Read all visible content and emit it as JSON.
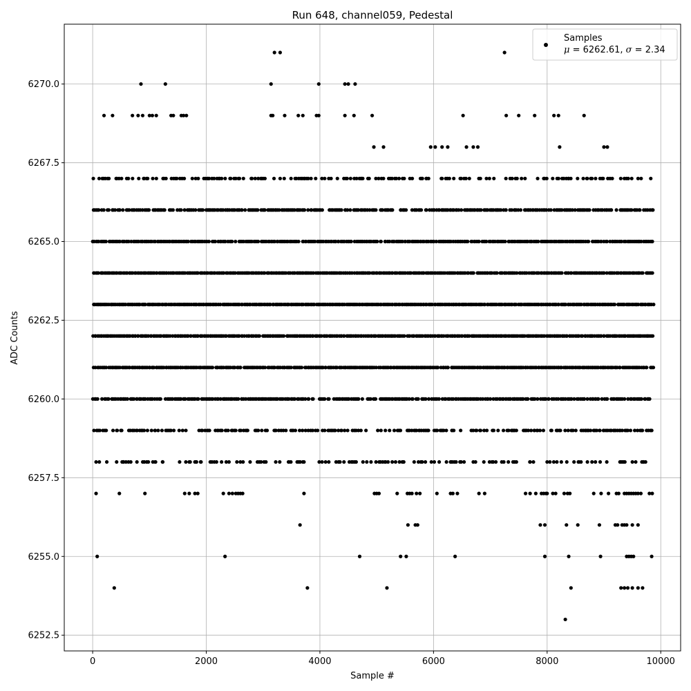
{
  "chart_data": {
    "type": "scatter",
    "title": "Run 648, channel059, Pedestal",
    "xlabel": "Sample #",
    "ylabel": "ADC Counts",
    "xlim": [
      -500,
      10350
    ],
    "ylim": [
      6252.0,
      6271.9
    ],
    "xticks": [
      0,
      2000,
      4000,
      6000,
      8000,
      10000
    ],
    "xtick_labels": [
      "0",
      "2000",
      "4000",
      "6000",
      "8000",
      "10000"
    ],
    "yticks": [
      6252.5,
      6255.0,
      6257.5,
      6260.0,
      6262.5,
      6265.0,
      6267.5,
      6270.0
    ],
    "ytick_labels": [
      "6252.5",
      "6255.0",
      "6257.5",
      "6260.0",
      "6262.5",
      "6265.0",
      "6267.5",
      "6270.0"
    ],
    "grid": true,
    "legend": {
      "placement": "top-right",
      "series_label": "Samples",
      "stats_mu_label": "μ",
      "stats_mu_value": "6262.61",
      "stats_sigma_label": "σ",
      "stats_sigma_value": "2.34"
    },
    "series": [
      {
        "name": "Samples",
        "color": "#000000",
        "x_range": [
          0,
          9850
        ],
        "n_samples": 9851,
        "mean": 6262.61,
        "std": 2.34,
        "dense_levels": [
          {
            "y": 6259,
            "x_range": [
              0,
              9850
            ],
            "density": 0.55
          },
          {
            "y": 6260,
            "x_range": [
              0,
              9850
            ],
            "density": 0.8
          },
          {
            "y": 6261,
            "x_range": [
              0,
              9850
            ],
            "density": 0.97
          },
          {
            "y": 6262,
            "x_range": [
              0,
              9850
            ],
            "density": 0.98
          },
          {
            "y": 6263,
            "x_range": [
              0,
              9850
            ],
            "density": 0.99
          },
          {
            "y": 6264,
            "x_range": [
              0,
              9850
            ],
            "density": 0.98
          },
          {
            "y": 6265,
            "x_range": [
              0,
              9850
            ],
            "density": 0.9
          },
          {
            "y": 6266,
            "x_range": [
              0,
              9850
            ],
            "density": 0.75
          },
          {
            "y": 6267,
            "x_range": [
              0,
              9850
            ],
            "density": 0.45
          },
          {
            "y": 6258,
            "x_range": [
              0,
              9850
            ],
            "density": 0.28
          }
        ],
        "sparse_points": [
          [
            3200,
            6271
          ],
          [
            3300,
            6271
          ],
          [
            7250,
            6271
          ],
          [
            850,
            6270
          ],
          [
            1280,
            6270
          ],
          [
            3140,
            6270
          ],
          [
            3980,
            6270
          ],
          [
            4440,
            6270
          ],
          [
            4500,
            6270
          ],
          [
            4620,
            6270
          ],
          [
            200,
            6269
          ],
          [
            350,
            6269
          ],
          [
            700,
            6269
          ],
          [
            800,
            6269
          ],
          [
            880,
            6269
          ],
          [
            1000,
            6269
          ],
          [
            1050,
            6269
          ],
          [
            1120,
            6269
          ],
          [
            1380,
            6269
          ],
          [
            1420,
            6269
          ],
          [
            1560,
            6269
          ],
          [
            1600,
            6269
          ],
          [
            1650,
            6269
          ],
          [
            3140,
            6269
          ],
          [
            3170,
            6269
          ],
          [
            3380,
            6269
          ],
          [
            3620,
            6269
          ],
          [
            3700,
            6269
          ],
          [
            3940,
            6269
          ],
          [
            3980,
            6269
          ],
          [
            4440,
            6269
          ],
          [
            4600,
            6269
          ],
          [
            4920,
            6269
          ],
          [
            6520,
            6269
          ],
          [
            7280,
            6269
          ],
          [
            7500,
            6269
          ],
          [
            7780,
            6269
          ],
          [
            8120,
            6269
          ],
          [
            8200,
            6269
          ],
          [
            8650,
            6269
          ],
          [
            4950,
            6268
          ],
          [
            5120,
            6268
          ],
          [
            5950,
            6268
          ],
          [
            6030,
            6268
          ],
          [
            6150,
            6268
          ],
          [
            6250,
            6268
          ],
          [
            6580,
            6268
          ],
          [
            6700,
            6268
          ],
          [
            6780,
            6268
          ],
          [
            8220,
            6268
          ],
          [
            9000,
            6268
          ],
          [
            9060,
            6268
          ],
          [
            60,
            6258
          ],
          [
            540,
            6258
          ],
          [
            630,
            6258
          ],
          [
            980,
            6258
          ],
          [
            1060,
            6258
          ],
          [
            1230,
            6258
          ],
          [
            1640,
            6258
          ],
          [
            1700,
            6258
          ],
          [
            1800,
            6258
          ],
          [
            1900,
            6258
          ],
          [
            2100,
            6258
          ],
          [
            2180,
            6258
          ],
          [
            2400,
            6258
          ],
          [
            2600,
            6258
          ],
          [
            2900,
            6258
          ],
          [
            3050,
            6258
          ],
          [
            3600,
            6258
          ],
          [
            3720,
            6258
          ],
          [
            4100,
            6258
          ],
          [
            4340,
            6258
          ],
          [
            4580,
            6258
          ],
          [
            4900,
            6258
          ],
          [
            5200,
            6258
          ],
          [
            5450,
            6258
          ],
          [
            5800,
            6258
          ],
          [
            6100,
            6258
          ],
          [
            6300,
            6258
          ],
          [
            6700,
            6258
          ],
          [
            7050,
            6258
          ],
          [
            7400,
            6258
          ],
          [
            7700,
            6258
          ],
          [
            8000,
            6258
          ],
          [
            8250,
            6258
          ],
          [
            8550,
            6258
          ],
          [
            8850,
            6258
          ],
          [
            9050,
            6258
          ],
          [
            9300,
            6258
          ],
          [
            9500,
            6258
          ],
          [
            9700,
            6258
          ],
          [
            60,
            6257
          ],
          [
            470,
            6257
          ],
          [
            920,
            6257
          ],
          [
            1620,
            6257
          ],
          [
            1700,
            6257
          ],
          [
            1800,
            6257
          ],
          [
            1850,
            6257
          ],
          [
            2300,
            6257
          ],
          [
            2400,
            6257
          ],
          [
            2460,
            6257
          ],
          [
            2520,
            6257
          ],
          [
            2560,
            6257
          ],
          [
            2600,
            6257
          ],
          [
            2640,
            6257
          ],
          [
            3720,
            6257
          ],
          [
            4960,
            6257
          ],
          [
            5000,
            6257
          ],
          [
            5040,
            6257
          ],
          [
            5360,
            6257
          ],
          [
            5540,
            6257
          ],
          [
            5580,
            6257
          ],
          [
            5620,
            6257
          ],
          [
            5700,
            6257
          ],
          [
            5760,
            6257
          ],
          [
            6060,
            6257
          ],
          [
            6300,
            6257
          ],
          [
            6340,
            6257
          ],
          [
            6420,
            6257
          ],
          [
            6800,
            6257
          ],
          [
            6900,
            6257
          ],
          [
            7620,
            6257
          ],
          [
            7700,
            6257
          ],
          [
            7800,
            6257
          ],
          [
            7900,
            6257
          ],
          [
            7940,
            6257
          ],
          [
            7980,
            6257
          ],
          [
            8000,
            6257
          ],
          [
            8100,
            6257
          ],
          [
            8150,
            6257
          ],
          [
            8300,
            6257
          ],
          [
            8360,
            6257
          ],
          [
            8400,
            6257
          ],
          [
            8820,
            6257
          ],
          [
            8950,
            6257
          ],
          [
            9080,
            6257
          ],
          [
            9220,
            6257
          ],
          [
            9260,
            6257
          ],
          [
            9360,
            6257
          ],
          [
            9400,
            6257
          ],
          [
            9440,
            6257
          ],
          [
            9480,
            6257
          ],
          [
            9520,
            6257
          ],
          [
            9560,
            6257
          ],
          [
            9600,
            6257
          ],
          [
            9650,
            6257
          ],
          [
            9800,
            6257
          ],
          [
            9850,
            6257
          ],
          [
            3650,
            6256
          ],
          [
            5550,
            6256
          ],
          [
            5680,
            6256
          ],
          [
            5720,
            6256
          ],
          [
            7880,
            6256
          ],
          [
            7960,
            6256
          ],
          [
            8340,
            6256
          ],
          [
            8540,
            6256
          ],
          [
            8920,
            6256
          ],
          [
            9200,
            6256
          ],
          [
            9240,
            6256
          ],
          [
            9320,
            6256
          ],
          [
            9360,
            6256
          ],
          [
            9400,
            6256
          ],
          [
            9500,
            6256
          ],
          [
            9600,
            6256
          ],
          [
            80,
            6255
          ],
          [
            2330,
            6255
          ],
          [
            4700,
            6255
          ],
          [
            5420,
            6255
          ],
          [
            5520,
            6255
          ],
          [
            6380,
            6255
          ],
          [
            7960,
            6255
          ],
          [
            8380,
            6255
          ],
          [
            8940,
            6255
          ],
          [
            9400,
            6255
          ],
          [
            9440,
            6255
          ],
          [
            9480,
            6255
          ],
          [
            9520,
            6255
          ],
          [
            9840,
            6255
          ],
          [
            380,
            6254
          ],
          [
            3780,
            6254
          ],
          [
            5180,
            6254
          ],
          [
            8420,
            6254
          ],
          [
            9300,
            6254
          ],
          [
            9360,
            6254
          ],
          [
            9420,
            6254
          ],
          [
            9500,
            6254
          ],
          [
            9600,
            6254
          ],
          [
            9680,
            6254
          ],
          [
            8320,
            6253
          ]
        ]
      }
    ]
  }
}
